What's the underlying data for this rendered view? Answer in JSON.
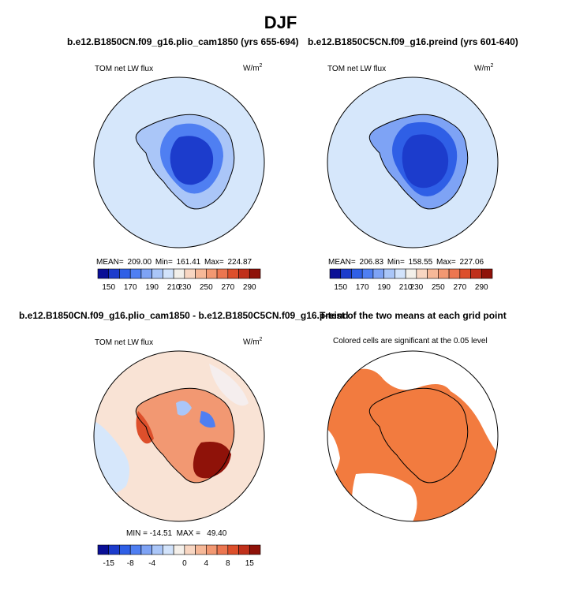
{
  "figure": {
    "title": "DJF"
  },
  "colors": {
    "abs_scale": [
      "#0a0f96",
      "#1c3ccc",
      "#2f5fe6",
      "#4f7ff2",
      "#7ea3f5",
      "#aac6f8",
      "#d2e3fb",
      "#f3f0ea",
      "#f8d6c2",
      "#f6b898",
      "#f29872",
      "#ec7650",
      "#dd4f2b",
      "#c0301b",
      "#8f1209"
    ],
    "diff_scale": [
      "#0a0f96",
      "#1c3ccc",
      "#2f5fe6",
      "#4f7ff2",
      "#7ea3f5",
      "#aac6f8",
      "#d2e3fb",
      "#f5f0ea",
      "#f8d6c2",
      "#f6b898",
      "#f29872",
      "#ec7650",
      "#dd4f2b",
      "#c0301b",
      "#8f1209"
    ],
    "significance": "#f27b3f",
    "ocean": "#d6e7fb"
  },
  "panels": [
    {
      "title": "b.e12.B1850CN.f09_g16.plio_cam1850 (yrs 655-694)",
      "variable": "TOM net LW flux",
      "units": "W/m",
      "units_sup": "2",
      "stats": "MEAN= 209.00   Min= 161.41   Max= 224.87",
      "colorbar_ticks": [
        "150",
        "170",
        "190",
        "210",
        "230",
        "250",
        "270",
        "290"
      ]
    },
    {
      "title": "b.e12.B1850C5CN.f09_g16.preind (yrs 601-640)",
      "variable": "TOM net LW flux",
      "units": "W/m",
      "units_sup": "2",
      "stats": "MEAN= 206.83   Min= 158.55   Max= 227.06",
      "colorbar_ticks": [
        "150",
        "170",
        "190",
        "210",
        "230",
        "250",
        "270",
        "290"
      ]
    },
    {
      "title": "b.e12.B1850CN.f09_g16.plio_cam1850 - b.e12.B1850C5CN.f09_g16.preind",
      "variable": "TOM net LW flux",
      "units": "W/m",
      "units_sup": "2",
      "stats": "MIN = -14.51  MAX =   49.40",
      "colorbar_ticks": [
        "-15",
        "-8",
        "-4",
        "0",
        "4",
        "8",
        "15"
      ]
    },
    {
      "title": "T-test of the two means at each grid point",
      "subtitle": "Colored cells are significant at the 0.05 level"
    }
  ],
  "chart_data": [
    {
      "type": "heatmap",
      "title": "b.e12.B1850CN.f09_g16.plio_cam1850 (yrs 655-694)",
      "variable": "TOM net LW flux",
      "units": "W/m2",
      "projection": "south polar stereographic",
      "mean": 209.0,
      "min": 161.41,
      "max": 224.87,
      "levels": [
        150,
        160,
        170,
        180,
        190,
        200,
        210,
        220,
        230,
        240,
        250,
        260,
        270,
        280,
        290
      ],
      "colorbar_labels": [
        150,
        170,
        190,
        210,
        230,
        250,
        270,
        290
      ]
    },
    {
      "type": "heatmap",
      "title": "b.e12.B1850C5CN.f09_g16.preind (yrs 601-640)",
      "variable": "TOM net LW flux",
      "units": "W/m2",
      "projection": "south polar stereographic",
      "mean": 206.83,
      "min": 158.55,
      "max": 227.06,
      "levels": [
        150,
        160,
        170,
        180,
        190,
        200,
        210,
        220,
        230,
        240,
        250,
        260,
        270,
        280,
        290
      ],
      "colorbar_labels": [
        150,
        170,
        190,
        210,
        230,
        250,
        270,
        290
      ]
    },
    {
      "type": "heatmap",
      "title": "b.e12.B1850CN.f09_g16.plio_cam1850 - b.e12.B1850C5CN.f09_g16.preind",
      "variable": "TOM net LW flux (difference)",
      "units": "W/m2",
      "projection": "south polar stereographic",
      "min": -14.51,
      "max": 49.4,
      "colorbar_labels": [
        -15,
        -8,
        -4,
        0,
        4,
        8,
        15
      ]
    },
    {
      "type": "heatmap",
      "title": "T-test of the two means at each grid point",
      "subtitle": "Colored cells are significant at the 0.05 level",
      "significance_level": 0.05
    }
  ]
}
